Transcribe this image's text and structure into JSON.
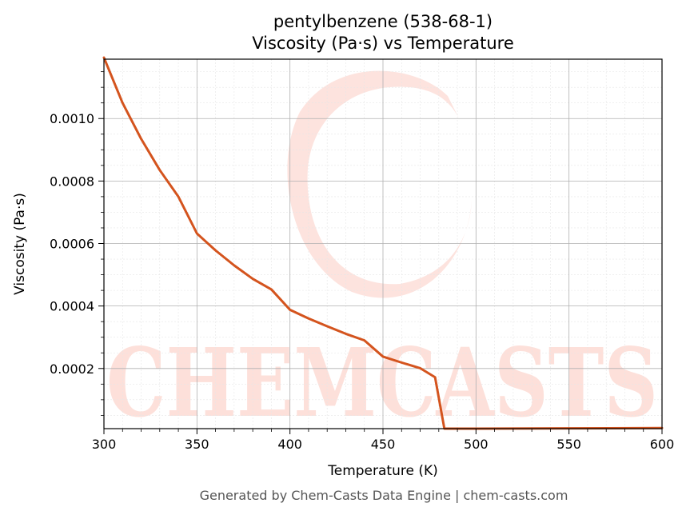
{
  "chart_data": {
    "type": "line",
    "title": "pentylbenzene (538-68-1)",
    "subtitle": "Viscosity (Pa·s) vs Temperature",
    "xlabel": "Temperature (K)",
    "ylabel": "Viscosity (Pa·s)",
    "xlim": [
      300,
      600
    ],
    "ylim": [
      7.5e-06,
      0.00119
    ],
    "x_ticks": [
      300,
      350,
      400,
      450,
      500,
      550,
      600
    ],
    "x_tick_labels": [
      "300",
      "350",
      "400",
      "450",
      "500",
      "550",
      "600"
    ],
    "y_ticks": [
      0.0002,
      0.0004,
      0.0006,
      0.0008,
      0.001
    ],
    "y_tick_labels": [
      "0.0002",
      "0.0004",
      "0.0006",
      "0.0008",
      "0.0010"
    ],
    "grid": true,
    "series": [
      {
        "color": "#d4541e",
        "x": [
          300,
          310,
          320,
          330,
          340,
          350,
          360,
          370,
          380,
          390,
          400,
          410,
          420,
          430,
          440,
          450,
          460,
          470,
          478,
          483,
          490,
          500,
          550,
          600
        ],
        "y": [
          0.001195,
          0.00105,
          0.000935,
          0.000835,
          0.00075,
          0.000632,
          0.000578,
          0.00053,
          0.000487,
          0.000453,
          0.000388,
          0.00036,
          0.000335,
          0.000311,
          0.00029,
          0.000238,
          0.000219,
          0.000201,
          0.000172,
          7.5e-06,
          7.5e-06,
          7.5e-06,
          8.5e-06,
          9.5e-06
        ]
      }
    ]
  },
  "watermark": {
    "text": "CHEMCASTS",
    "color": "#fde0da"
  },
  "footer": "Generated by Chem-Casts Data Engine | chem-casts.com"
}
